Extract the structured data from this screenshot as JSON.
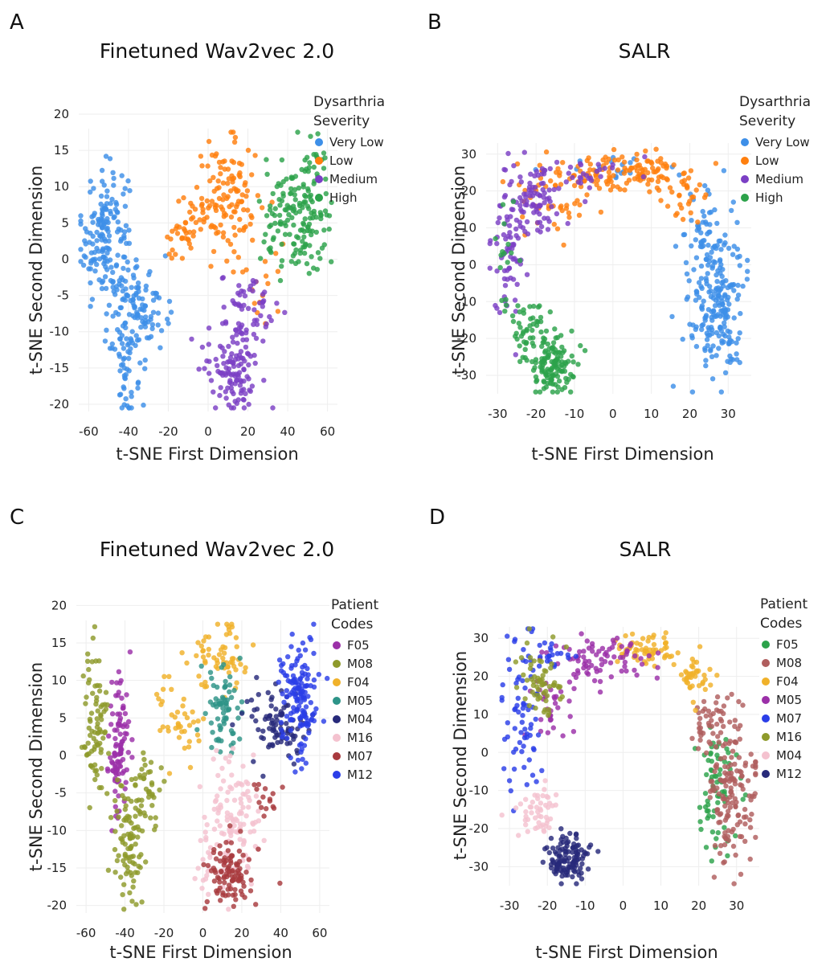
{
  "chart_data": [
    {
      "panel": "A",
      "type": "scatter",
      "title": "Finetuned Wav2vec 2.0",
      "xlabel": "t-SNE First Dimension",
      "ylabel": "t-SNE Second Dimension",
      "xlim": [
        -65,
        65
      ],
      "ylim": [
        -21,
        18
      ],
      "xticks": [
        -60,
        -40,
        -20,
        0,
        20,
        40,
        60
      ],
      "yticks": [
        -20,
        -15,
        -10,
        -5,
        0,
        5,
        10,
        15,
        20
      ],
      "grid": true,
      "legend": {
        "title": [
          "Dysarthria",
          "Severity"
        ],
        "position": "right"
      },
      "series": [
        {
          "name": "Very Low",
          "color": "#3d8fe8",
          "clusters": [
            {
              "cx": -52,
              "cy": 3,
              "sx": 6,
              "sy": 5,
              "n": 170
            },
            {
              "cx": -40,
              "cy": -12,
              "sx": 4,
              "sy": 5,
              "n": 90
            },
            {
              "cx": -30,
              "cy": -6,
              "sx": 5,
              "sy": 3,
              "n": 60
            }
          ]
        },
        {
          "name": "Low",
          "color": "#ff7f0e",
          "clusters": [
            {
              "cx": 10,
              "cy": 8,
              "sx": 8,
              "sy": 4,
              "n": 120
            },
            {
              "cx": -12,
              "cy": 4,
              "sx": 6,
              "sy": 3,
              "n": 40
            },
            {
              "cx": 30,
              "cy": -3,
              "sx": 6,
              "sy": 3,
              "n": 15
            }
          ]
        },
        {
          "name": "Medium",
          "color": "#7b3fc4",
          "clusters": [
            {
              "cx": 12,
              "cy": -15,
              "sx": 7,
              "sy": 3,
              "n": 110
            },
            {
              "cx": 20,
              "cy": -7,
              "sx": 7,
              "sy": 3,
              "n": 60
            }
          ]
        },
        {
          "name": "High",
          "color": "#2ca24a",
          "clusters": [
            {
              "cx": 45,
              "cy": 5,
              "sx": 9,
              "sy": 4,
              "n": 150
            },
            {
              "cx": 52,
              "cy": 12,
              "sx": 4,
              "sy": 3,
              "n": 25
            }
          ]
        }
      ]
    },
    {
      "panel": "B",
      "type": "scatter",
      "title": "SALR",
      "xlabel": "t-SNE First Dimension",
      "ylabel": "t-SNE Second Dimension",
      "xlim": [
        -33,
        36
      ],
      "ylim": [
        -35,
        33
      ],
      "xticks": [
        -30,
        -20,
        -10,
        0,
        10,
        20,
        30
      ],
      "yticks": [
        -30,
        -20,
        -10,
        0,
        10,
        20,
        30
      ],
      "grid": true,
      "legend": {
        "title": [
          "Dysarthria",
          "Severity"
        ],
        "position": "right"
      },
      "series": [
        {
          "name": "Very Low",
          "color": "#3d8fe8",
          "clusters": [
            {
              "cx": 27,
              "cy": -10,
              "sx": 3.5,
              "sy": 10,
              "n": 210
            },
            {
              "cx": 23,
              "cy": 10,
              "sx": 3,
              "sy": 6,
              "n": 40
            },
            {
              "cx": 2,
              "cy": 26,
              "sx": 10,
              "sy": 2,
              "n": 20
            }
          ]
        },
        {
          "name": "Low",
          "color": "#ff7f0e",
          "clusters": [
            {
              "cx": 2,
              "cy": 25,
              "sx": 10,
              "sy": 2.5,
              "n": 120
            },
            {
              "cx": -15,
              "cy": 18,
              "sx": 5,
              "sy": 4,
              "n": 40
            },
            {
              "cx": 18,
              "cy": 20,
              "sx": 3,
              "sy": 4,
              "n": 30
            }
          ]
        },
        {
          "name": "Medium",
          "color": "#7b3fc4",
          "clusters": [
            {
              "cx": -22,
              "cy": 18,
              "sx": 4,
              "sy": 5,
              "n": 80
            },
            {
              "cx": -27,
              "cy": 2,
              "sx": 2.5,
              "sy": 9,
              "n": 70
            },
            {
              "cx": -8,
              "cy": 24,
              "sx": 6,
              "sy": 2.5,
              "n": 30
            }
          ]
        },
        {
          "name": "High",
          "color": "#2ca24a",
          "clusters": [
            {
              "cx": -16,
              "cy": -27,
              "sx": 3,
              "sy": 4,
              "n": 120
            },
            {
              "cx": -22,
              "cy": -17,
              "sx": 3,
              "sy": 4,
              "n": 50
            },
            {
              "cx": -28,
              "cy": 0,
              "sx": 1.5,
              "sy": 6,
              "n": 15
            }
          ]
        }
      ]
    },
    {
      "panel": "C",
      "type": "scatter",
      "title": "Finetuned Wav2vec 2.0",
      "xlabel": "t-SNE First Dimension",
      "ylabel": "t-SNE Second Dimension",
      "xlim": [
        -65,
        65
      ],
      "ylim": [
        -21,
        18
      ],
      "xticks": [
        -60,
        -40,
        -20,
        0,
        20,
        40,
        60
      ],
      "yticks": [
        -20,
        -15,
        -10,
        -5,
        0,
        5,
        10,
        15,
        20
      ],
      "grid": true,
      "legend": {
        "title": [
          "Patient",
          "Codes"
        ],
        "position": "right"
      },
      "series": [
        {
          "name": "F05",
          "color": "#9b30a8",
          "clusters": [
            {
              "cx": -43,
              "cy": 1,
              "sx": 3,
              "sy": 5,
              "n": 100
            }
          ]
        },
        {
          "name": "M08",
          "color": "#8e9a2b",
          "clusters": [
            {
              "cx": -55,
              "cy": 4,
              "sx": 3,
              "sy": 5,
              "n": 80
            },
            {
              "cx": -38,
              "cy": -12,
              "sx": 4,
              "sy": 4.5,
              "n": 90
            },
            {
              "cx": -28,
              "cy": -5,
              "sx": 4,
              "sy": 3,
              "n": 40
            }
          ]
        },
        {
          "name": "F04",
          "color": "#f0b12a",
          "clusters": [
            {
              "cx": 8,
              "cy": 13,
              "sx": 8,
              "sy": 2.5,
              "n": 60
            },
            {
              "cx": -12,
              "cy": 5,
              "sx": 6,
              "sy": 3,
              "n": 40
            }
          ]
        },
        {
          "name": "M05",
          "color": "#2e9488",
          "clusters": [
            {
              "cx": 10,
              "cy": 6,
              "sx": 5,
              "sy": 3,
              "n": 70
            }
          ]
        },
        {
          "name": "M04",
          "color": "#272a7a",
          "clusters": [
            {
              "cx": 38,
              "cy": 4,
              "sx": 8,
              "sy": 2.5,
              "n": 90
            }
          ]
        },
        {
          "name": "M16",
          "color": "#f4c2cf",
          "clusters": [
            {
              "cx": 14,
              "cy": -8,
              "sx": 7,
              "sy": 4,
              "n": 110
            },
            {
              "cx": 2,
              "cy": -14,
              "sx": 3,
              "sy": 2,
              "n": 20
            }
          ]
        },
        {
          "name": "M07",
          "color": "#a83a3e",
          "clusters": [
            {
              "cx": 15,
              "cy": -16,
              "sx": 6,
              "sy": 2.5,
              "n": 100
            },
            {
              "cx": 32,
              "cy": -5,
              "sx": 4,
              "sy": 2,
              "n": 15
            }
          ]
        },
        {
          "name": "M12",
          "color": "#2b3ee8",
          "clusters": [
            {
              "cx": 50,
              "cy": 8,
              "sx": 5,
              "sy": 4,
              "n": 140
            }
          ]
        }
      ]
    },
    {
      "panel": "D",
      "type": "scatter",
      "title": "SALR",
      "xlabel": "t-SNE First Dimension",
      "ylabel": "t-SNE Second Dimension",
      "xlim": [
        -33,
        36
      ],
      "ylim": [
        -35,
        33
      ],
      "xticks": [
        -30,
        -20,
        -10,
        0,
        10,
        20,
        30
      ],
      "yticks": [
        -30,
        -20,
        -10,
        0,
        10,
        20,
        30
      ],
      "grid": true,
      "legend": {
        "title": [
          "Patient",
          "Codes"
        ],
        "position": "right"
      },
      "series": [
        {
          "name": "F05",
          "color": "#2ca24a",
          "clusters": [
            {
              "cx": 24,
              "cy": -12,
              "sx": 3,
              "sy": 9,
              "n": 70
            }
          ]
        },
        {
          "name": "M08",
          "color": "#b05e5e",
          "clusters": [
            {
              "cx": 29,
              "cy": -10,
              "sx": 3,
              "sy": 10,
              "n": 150
            },
            {
              "cx": 23,
              "cy": 8,
              "sx": 2.5,
              "sy": 5,
              "n": 40
            }
          ]
        },
        {
          "name": "F04",
          "color": "#f0b12a",
          "clusters": [
            {
              "cx": 6,
              "cy": 27,
              "sx": 4,
              "sy": 2,
              "n": 60
            },
            {
              "cx": 19,
              "cy": 19,
              "sx": 2.5,
              "sy": 4,
              "n": 40
            }
          ]
        },
        {
          "name": "M05",
          "color": "#9b30a8",
          "clusters": [
            {
              "cx": -5,
              "cy": 24,
              "sx": 7,
              "sy": 3,
              "n": 80
            },
            {
              "cx": -20,
              "cy": 12,
              "sx": 3,
              "sy": 4,
              "n": 30
            }
          ]
        },
        {
          "name": "M07",
          "color": "#2b3ee8",
          "clusters": [
            {
              "cx": -27,
              "cy": 10,
              "sx": 2.5,
              "sy": 12,
              "n": 70
            },
            {
              "cx": -18,
              "cy": 25,
              "sx": 4,
              "sy": 2,
              "n": 20
            }
          ]
        },
        {
          "name": "M16",
          "color": "#8e9a2b",
          "clusters": [
            {
              "cx": -22,
              "cy": 17,
              "sx": 3,
              "sy": 5,
              "n": 60
            }
          ]
        },
        {
          "name": "M04",
          "color": "#f4c2cf",
          "clusters": [
            {
              "cx": -23,
              "cy": -15,
              "sx": 3,
              "sy": 4,
              "n": 50
            }
          ]
        },
        {
          "name": "M12",
          "color": "#272a7a",
          "clusters": [
            {
              "cx": -15,
              "cy": -28,
              "sx": 3,
              "sy": 3,
              "n": 120
            }
          ]
        }
      ]
    }
  ]
}
